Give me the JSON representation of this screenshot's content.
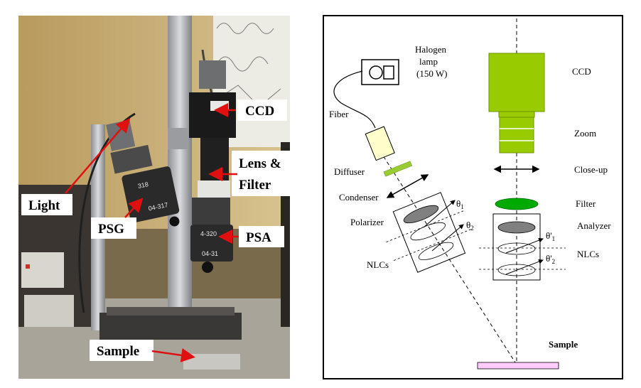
{
  "photo": {
    "labels": {
      "ccd": "CCD",
      "lens_line1": "Lens &",
      "lens_line2": "Filter",
      "light": "Light",
      "psg": "PSG",
      "psa": "PSA",
      "sample": "Sample"
    },
    "device_text": {
      "psg_top": "318",
      "psg_bottom": "04-317",
      "psa_top": "4-320",
      "psa_bottom": "04-31"
    },
    "colors": {
      "arrow": "#e01010",
      "label_bg": "#ffffff"
    }
  },
  "diagram": {
    "labels": {
      "halogen_line1": "Halogen",
      "halogen_line2": "lamp",
      "halogen_line3": "(150 W)",
      "ccd": "CCD",
      "fiber": "Fiber",
      "zoom": "Zoom",
      "diffuser": "Diffuser",
      "closeup": "Close-up",
      "condenser": "Condenser",
      "filter": "Filter",
      "polarizer": "Polarizer",
      "analyzer": "Analyzer",
      "nlcs_left": "NLCs",
      "nlcs_right": "NLCs",
      "sample": "Sample"
    },
    "angles": {
      "theta1": "θ",
      "theta1_sub": "1",
      "theta2": "θ",
      "theta2_sub": "2",
      "theta1p": "θ'",
      "theta1p_sub": "1",
      "theta2p": "θ'",
      "theta2p_sub": "2"
    },
    "colors": {
      "ccd_body": "#99cc00",
      "diffuser": "#99cc33",
      "filter": "#00aa00",
      "gray_ellipse": "#808080",
      "fiber_holder": "#ffffcc",
      "sample": "#ffccff"
    }
  }
}
